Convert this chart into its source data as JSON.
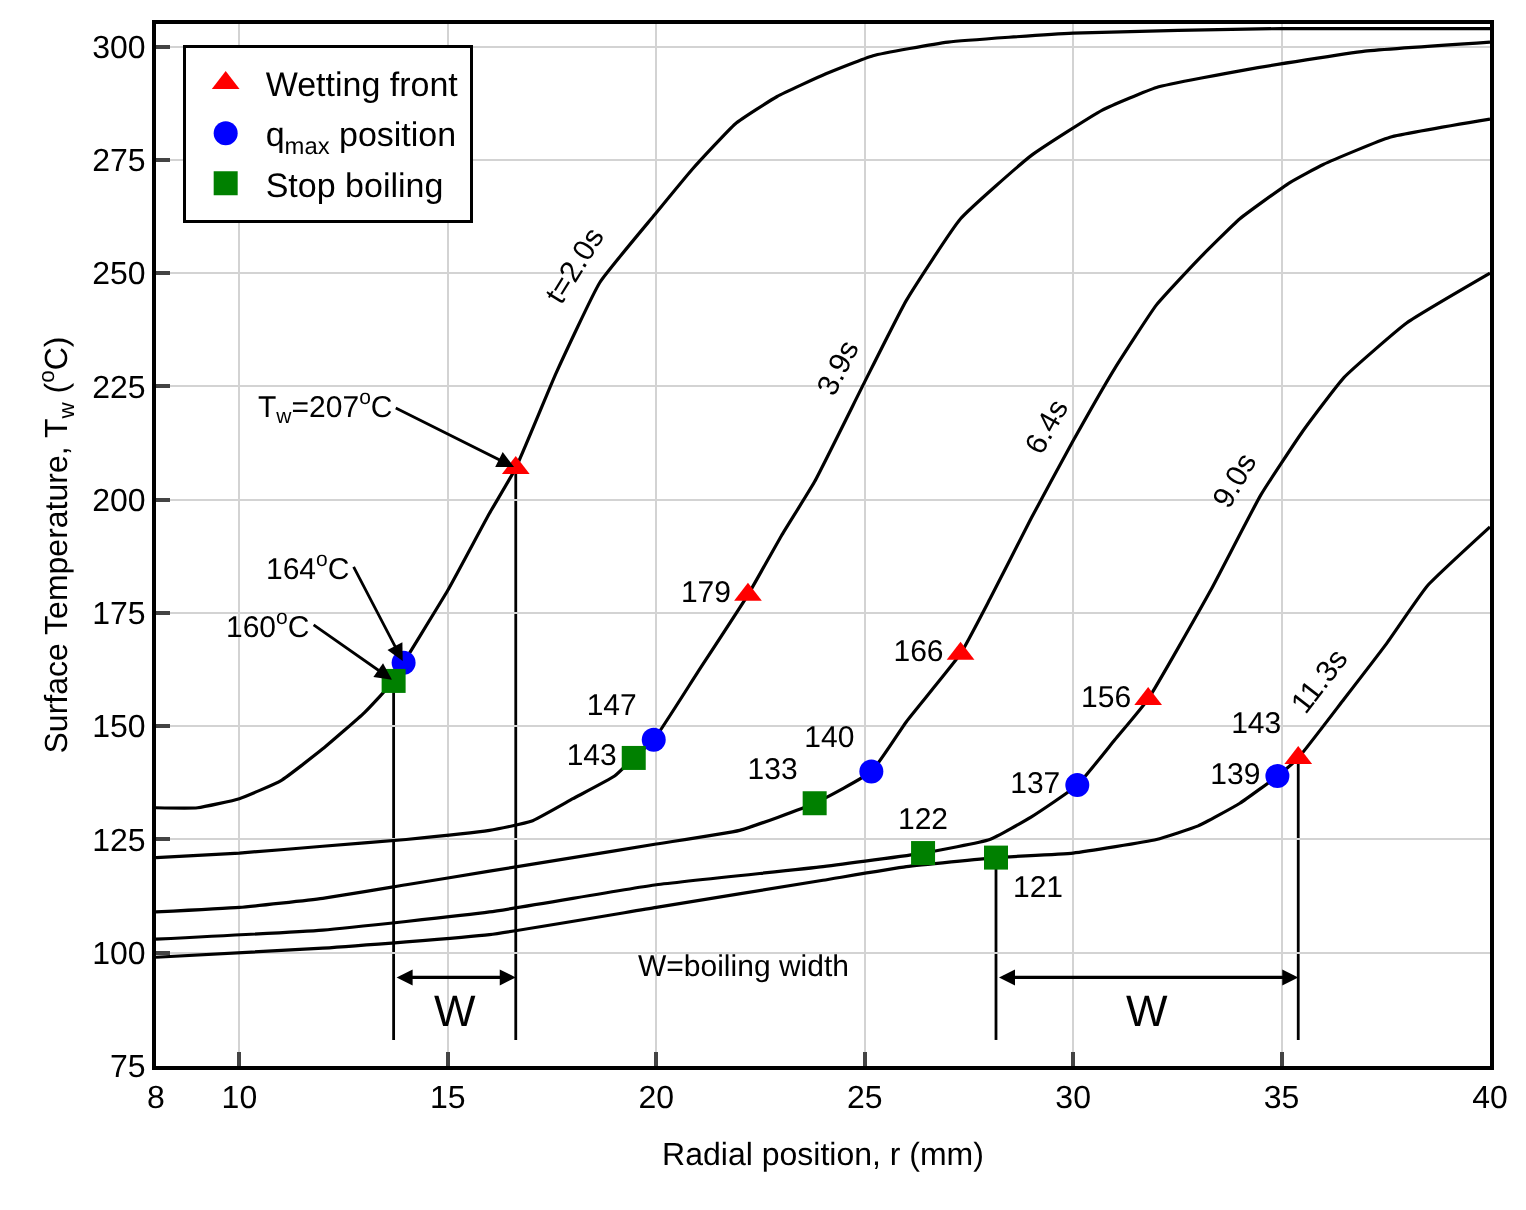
{
  "chart_data": {
    "type": "line",
    "xlabel": "Radial position, r (mm)",
    "ylabel": "Surface Temperature, T$_{w}$ ($^{o}$C)",
    "xlim": [
      8,
      40
    ],
    "ylim": [
      75,
      305
    ],
    "xticks": [
      8,
      10,
      15,
      20,
      25,
      30,
      35,
      40
    ],
    "yticks": [
      75,
      100,
      125,
      150,
      175,
      200,
      225,
      250,
      275,
      300
    ],
    "grid": true,
    "legend": "top left",
    "series": [
      {
        "name": "t=2.0s",
        "color": "#000000",
        "marker": "none",
        "x": [
          8,
          9,
          10,
          11,
          12,
          13,
          13.7,
          13.94,
          15,
          16,
          16.63,
          17.6,
          18.65,
          19.97,
          20.87,
          21.9,
          22.9,
          24.07,
          25.2,
          27,
          30,
          35,
          40
        ],
        "values": [
          132,
          132,
          134,
          138,
          145,
          153,
          160,
          164,
          180,
          197,
          207,
          228,
          248,
          263,
          273,
          283,
          289,
          294,
          298,
          301,
          303,
          304,
          304
        ]
      },
      {
        "name": "3.9s",
        "color": "#000000",
        "marker": "none",
        "x": [
          8,
          10,
          12,
          14,
          16,
          17,
          18,
          19,
          19.46,
          19.94,
          21,
          22.2,
          23,
          23.8,
          25,
          26,
          27.3,
          29,
          30.7,
          32,
          34.2,
          37,
          40
        ],
        "values": [
          121,
          122,
          123.5,
          125,
          127,
          129,
          134,
          139,
          143,
          147,
          162,
          179,
          192,
          204,
          226,
          244,
          262,
          276,
          286,
          291,
          295,
          299,
          301
        ]
      },
      {
        "name": "6.4s",
        "color": "#000000",
        "marker": "none",
        "x": [
          8,
          10,
          12,
          14,
          16,
          18,
          20,
          22,
          23.8,
          25.16,
          26,
          27.3,
          28,
          29,
          30,
          31,
          32,
          33,
          34,
          35.2,
          36,
          37.6,
          40
        ],
        "values": [
          109,
          110,
          112,
          115,
          118,
          121,
          124,
          127,
          133,
          140,
          151,
          166,
          178,
          196,
          213,
          229,
          243,
          253,
          262,
          270,
          274,
          280,
          284
        ]
      },
      {
        "name": "9.0s",
        "color": "#000000",
        "marker": "none",
        "x": [
          8,
          12,
          16,
          20,
          24,
          26.4,
          28,
          29,
          30.1,
          31,
          31.8,
          33.3,
          34.5,
          35.5,
          36.5,
          38,
          40
        ],
        "values": [
          103,
          105,
          109,
          115,
          119,
          122,
          125,
          130,
          137,
          147,
          156,
          180,
          201,
          215,
          227,
          239,
          250
        ]
      },
      {
        "name": "11.3s",
        "color": "#000000",
        "marker": "none",
        "x": [
          8,
          12,
          16,
          20,
          24,
          26,
          28.15,
          30,
          32,
          33,
          34,
          34.9,
          35.4,
          36.5,
          37.5,
          38.5,
          40
        ],
        "values": [
          99,
          101,
          104,
          110,
          116,
          119,
          121,
          122,
          125,
          128,
          133,
          139,
          143,
          156,
          168,
          181,
          194
        ]
      },
      {
        "name": "Wetting front",
        "type": "scatter",
        "color": "#ff0000",
        "marker": "triangle",
        "x": [
          16.63,
          22.2,
          27.3,
          31.8,
          35.4
        ],
        "values": [
          207,
          179,
          166,
          156,
          143
        ],
        "value_labels": [
          "T$_{w}$=207$^{o}$C",
          "179",
          "166",
          "156",
          "143"
        ]
      },
      {
        "name": "q$_{max}$ position",
        "type": "scatter",
        "color": "#0000ff",
        "marker": "circle",
        "x": [
          13.94,
          19.94,
          25.16,
          30.1,
          34.9
        ],
        "values": [
          164,
          147,
          140,
          137,
          139
        ],
        "value_labels": [
          "164$^{o}$C",
          "147",
          "140",
          "137",
          "139"
        ]
      },
      {
        "name": "Stop boiling",
        "type": "scatter",
        "color": "#008000",
        "marker": "square",
        "x": [
          13.7,
          19.46,
          23.8,
          26.4,
          28.15
        ],
        "values": [
          160,
          143,
          133,
          122,
          121
        ],
        "value_labels": [
          "160$^{o}$C",
          "143",
          "133",
          "122",
          "121"
        ]
      }
    ],
    "ref_lines": [
      {
        "axis": "x",
        "value": 13.7,
        "label": null,
        "color": "#000000"
      },
      {
        "axis": "x",
        "value": 16.63,
        "label": null,
        "color": "#000000"
      },
      {
        "axis": "x",
        "value": 28.15,
        "label": null,
        "color": "#000000"
      },
      {
        "axis": "x",
        "value": 35.4,
        "label": null,
        "color": "#000000"
      }
    ],
    "annotations": [
      "W",
      "W=boiling width",
      "W"
    ]
  }
}
